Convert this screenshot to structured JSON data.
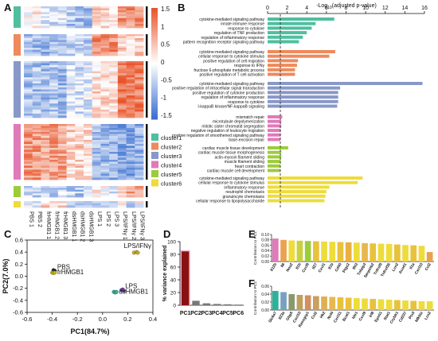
{
  "letters": {
    "A": "A",
    "B": "B",
    "C": "C",
    "D": "D",
    "E": "E",
    "F": "F"
  },
  "colors": {
    "cluster1": "#4fbf9f",
    "cluster2": "#ee8a5c",
    "cluster3": "#8898c8",
    "cluster4": "#e07ab8",
    "cluster5": "#9ccc3c",
    "cluster6": "#eedc3c",
    "heat_low": "#3a6fd0",
    "heat_mid": "#ffffff",
    "heat_high": "#e8552b",
    "pbs": "#222222",
    "frhmgb1": "#c8b400",
    "lps": "#7a3fb0",
    "dshmgb1": "#2bb39a",
    "lpsifn": "#c8a820",
    "pc1": "#8a1010",
    "pc2": "#777777"
  },
  "chart_data": [
    {
      "panel": "A",
      "type": "heatmap",
      "columns": [
        "PBS 1",
        "PBS 2",
        "frHMGB1 1",
        "frHMGB1 2",
        "frHMGB1 3",
        "dsHMGB1 1",
        "dsHMGB1 2",
        "dsHMGB1 3",
        "LPS 1",
        "LPS 2",
        "LPS 3",
        "LPS/IFNγ 1",
        "LPS/IFNγ 2",
        "LPS/IFNγ 3"
      ],
      "colorbar": {
        "ticks": [
          "1.5",
          "1",
          "0.5",
          "0",
          "-0.5",
          "-1",
          "-1.5"
        ],
        "min": -1.5,
        "max": 1.5
      },
      "clusters": [
        {
          "name": "cluster1",
          "pattern": [
            0.1,
            0.2,
            -0.2,
            -0.3,
            -0.3,
            -0.6,
            -0.6,
            -0.7,
            0.4,
            0.3,
            0.3,
            0.9,
            1.0,
            1.0
          ]
        },
        {
          "name": "cluster2",
          "pattern": [
            -0.6,
            -0.7,
            -0.8,
            -0.7,
            -0.7,
            -0.4,
            -0.4,
            -0.5,
            1.0,
            0.9,
            1.0,
            0.4,
            0.3,
            0.4
          ]
        },
        {
          "name": "cluster3",
          "pattern": [
            -0.6,
            -0.6,
            -0.7,
            -0.6,
            -0.7,
            -0.2,
            -0.3,
            -0.2,
            0.3,
            0.4,
            0.3,
            1.2,
            1.2,
            1.1
          ]
        },
        {
          "name": "cluster4",
          "pattern": [
            0.9,
            0.9,
            0.8,
            0.9,
            0.8,
            0.4,
            0.4,
            0.3,
            -0.7,
            -0.7,
            -0.8,
            -0.9,
            -0.9,
            -0.8
          ]
        },
        {
          "name": "cluster5",
          "pattern": [
            -0.3,
            -0.4,
            -0.3,
            -0.5,
            -0.4,
            -0.5,
            -0.6,
            -0.5,
            0.1,
            0.0,
            -0.2,
            0.6,
            0.9,
            0.8
          ]
        },
        {
          "name": "cluster6",
          "pattern": [
            -0.3,
            -0.3,
            0.4,
            0.3,
            0.3,
            -0.3,
            -0.3,
            -0.2,
            -0.7,
            -0.6,
            -0.7,
            0.1,
            -0.4,
            0.0
          ]
        }
      ],
      "legend": [
        "cluster1",
        "cluster2",
        "cluster3",
        "cluster4",
        "cluster5",
        "cluster6"
      ]
    },
    {
      "panel": "B",
      "type": "bar",
      "orientation": "horizontal",
      "xlabel": "-Log10(adjusted p-value)",
      "xlabel_parts": {
        "pre": "-Log",
        "sub": "10",
        "post": "(adjusted p-value)"
      },
      "xticks": [
        "0",
        "2",
        "4",
        "6",
        "8",
        "10",
        "12",
        "14",
        "16"
      ],
      "xlim": [
        0,
        16
      ],
      "threshold": 1.3,
      "groups": [
        {
          "cluster": "cluster1",
          "terms": [
            "cytokine-mediated signaling pathway",
            "innate immune response",
            "response to cytokine",
            "regulation of TNF production",
            "regulation of inflammatory response",
            "pattern recognition receptor signaling pathway"
          ],
          "values": [
            6.8,
            4.9,
            4.5,
            4.0,
            3.6,
            3.2
          ]
        },
        {
          "cluster": "cluster2",
          "terms": [
            "cytokine-mediated signaling pathway",
            "cellular response to cytokine stimulus",
            "positive regulation of cell migration",
            "response to IFNγ",
            "fructose 6-phosphate metabolic process",
            "positive regulation of T cell activation"
          ],
          "values": [
            6.9,
            6.3,
            3.1,
            3.0,
            2.8,
            2.8
          ]
        },
        {
          "cluster": "cluster3",
          "terms": [
            "cytokine-mediated signaling pathway",
            "positive regulation of intracellular signal transduction",
            "positive regulation of cytokine production",
            "regulation of inflammatory response",
            "response to cytokine",
            "I-kappaB kinase/NF-kappaB signaling"
          ],
          "values": [
            15.8,
            7.4,
            7.2,
            7.2,
            7.2,
            7.1
          ]
        },
        {
          "cluster": "cluster4",
          "terms": [
            "mismatch repair",
            "microtubule depolymerization",
            "mitotic sister chromatid segregation",
            "negative regulation of leukocyte migration",
            "positive regulation of smoothened signaling pathway",
            "base-excision repair"
          ],
          "values": [
            1.5,
            1.4,
            1.4,
            1.35,
            1.35,
            1.3
          ]
        },
        {
          "cluster": "cluster5",
          "terms": [
            "cardiac muscle tissue development",
            "cardiac muscle tissue morphogenesis",
            "actin-myosin filament sliding",
            "muscle filament sliding",
            "heart contraction",
            "cardiac muscle cell development"
          ],
          "values": [
            2.1,
            1.4,
            1.4,
            1.35,
            1.3,
            1.3
          ]
        },
        {
          "cluster": "cluster6",
          "terms": [
            "cytokine-mediated signaling pathway",
            "cellular response to cytokine stimulus",
            "inflammatory response",
            "neutrophil chemotaxis",
            "granulocyte chemotaxis",
            "cellular response to lipopolysaccharide"
          ],
          "values": [
            9.7,
            9.2,
            6.3,
            6.0,
            5.9,
            5.8
          ]
        }
      ]
    },
    {
      "panel": "C",
      "type": "scatter",
      "xlabel": "PC1(84.7%)",
      "ylabel": "PC2(7.0%)",
      "xlim": [
        -0.6,
        0.4
      ],
      "ylim": [
        -0.6,
        0.6
      ],
      "xticks": [
        "-0.6",
        "-0.4",
        "-0.2",
        "0.0",
        "0.2",
        "0.4"
      ],
      "yticks": [
        "-0.6",
        "-0.4",
        "-0.2",
        "0.0",
        "0.2",
        "0.4",
        "0.6"
      ],
      "series": [
        {
          "name": "PBS",
          "color_key": "pbs",
          "points": [
            [
              -0.39,
              0.1
            ],
            [
              -0.38,
              0.09
            ]
          ]
        },
        {
          "name": "frHMGB1",
          "color_key": "frhmgb1",
          "points": [
            [
              -0.4,
              0.06
            ],
            [
              -0.39,
              0.055
            ],
            [
              -0.38,
              0.06
            ]
          ]
        },
        {
          "name": "LPS",
          "color_key": "lps",
          "points": [
            [
              0.15,
              -0.23
            ],
            [
              0.16,
              -0.22
            ],
            [
              0.17,
              -0.24
            ]
          ]
        },
        {
          "name": "dsHMGB1",
          "color_key": "dshmgb1",
          "points": [
            [
              0.09,
              -0.26
            ],
            [
              0.1,
              -0.27
            ],
            [
              0.11,
              -0.26
            ]
          ]
        },
        {
          "name": "LPS/IFNγ",
          "color_key": "lpsifn",
          "points": [
            [
              0.25,
              0.39
            ],
            [
              0.27,
              0.4
            ],
            [
              0.28,
              0.39
            ]
          ]
        }
      ],
      "labels": [
        "PBS",
        "frHMGB1",
        "LPS",
        "dsHMGB1",
        "LPS/IFNγ"
      ]
    },
    {
      "panel": "D",
      "type": "bar",
      "ylabel": "% variance explained",
      "categories": [
        "PC1",
        "PC2",
        "PC3",
        "PC4",
        "PC5",
        "PC6"
      ],
      "values": [
        84.7,
        7.0,
        3.0,
        2.0,
        1.5,
        1.0
      ],
      "ylim": [
        0,
        100
      ],
      "yticks": [
        "0",
        "20",
        "40",
        "60",
        "80",
        "100"
      ]
    },
    {
      "panel": "E",
      "type": "bar",
      "ylabel": "Contribution to PC1",
      "categories": [
        "Il12b",
        "Il6",
        "Nos2",
        "Il1b",
        "Cxcl9",
        "Il27",
        "Cxcl1",
        "Il1b",
        "Cd40",
        "Ptgs2",
        "Ifit3",
        "Tnfaip3",
        "Serpinb2",
        "Tnfrsf9",
        "Tnfrsf26",
        "Lcn2",
        "Acod1",
        "Il1a",
        "Cxcl10",
        "Ccl2"
      ],
      "values": [
        0.085,
        0.08,
        0.078,
        0.077,
        0.076,
        0.075,
        0.074,
        0.073,
        0.072,
        0.071,
        0.07,
        0.068,
        0.067,
        0.066,
        0.065,
        0.063,
        0.061,
        0.06,
        0.058,
        0.035
      ],
      "ylim": [
        0,
        0.1
      ],
      "yticks": [
        "0.00",
        "0.02",
        "0.04",
        "0.06",
        "0.08",
        "0.10"
      ]
    },
    {
      "panel": "F",
      "type": "bar",
      "ylabel": "Contribution to PC2",
      "categories": [
        "Slc6a7",
        "Il23a",
        "Gbp5",
        "Cxcl10",
        "Rassgrp1",
        "Ccl2",
        "Hk2",
        "Ncf4",
        "Cxcl11",
        "Bcat1",
        "Ido1",
        "Cxcl9",
        "Irf8",
        "Epsti1",
        "Stat1",
        "Crybb1",
        "Cd207",
        "Ptx3",
        "Nfkbiz",
        "Lcn2"
      ],
      "values": [
        0.048,
        0.045,
        0.04,
        0.038,
        0.037,
        0.035,
        0.034,
        0.033,
        0.032,
        0.031,
        0.03,
        0.029,
        0.028,
        0.027,
        0.026,
        0.025,
        0.024,
        0.023,
        0.022,
        0.022
      ],
      "ylim": [
        0,
        0.06
      ],
      "yticks": [
        "0.00",
        "0.02",
        "0.04",
        "0.06"
      ]
    }
  ]
}
